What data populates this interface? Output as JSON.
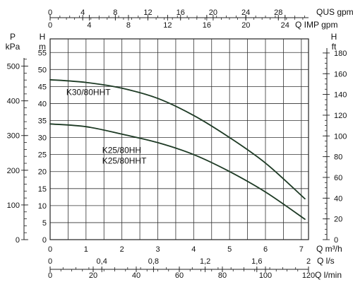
{
  "chart_data": {
    "type": "line",
    "title": "",
    "colors": {
      "curve": "#1d3a24",
      "grid": "#333333",
      "text": "#111111"
    },
    "grid": true,
    "primary_x": {
      "unit": "Q m³/h",
      "range": [
        0,
        7.2
      ],
      "ticks": [
        "0",
        "1",
        "2",
        "3",
        "4",
        "5",
        "6",
        "7"
      ]
    },
    "primary_y": {
      "label": "H",
      "unit": "m",
      "range": [
        0,
        59
      ],
      "ticks": [
        "0",
        "5",
        "10",
        "15",
        "20",
        "25",
        "30",
        "35",
        "40",
        "45",
        "50",
        "55"
      ]
    },
    "left_pressure_axis": {
      "label": "P",
      "unit": "kPa",
      "ticks": [
        "0",
        "100",
        "200",
        "300",
        "400",
        "500"
      ],
      "ticks_value": [
        0,
        100,
        200,
        300,
        400,
        500
      ]
    },
    "right_feet_axis": {
      "label": "H",
      "unit": "ft",
      "ticks": [
        "0",
        "20",
        "40",
        "60",
        "80",
        "100",
        "120",
        "140",
        "160",
        "180"
      ],
      "ticks_value": [
        0,
        20,
        40,
        60,
        80,
        100,
        120,
        140,
        160,
        180
      ]
    },
    "top_axes": [
      {
        "label": "QUS gpm",
        "ticks": [
          "0",
          "4",
          "8",
          "12",
          "16",
          "20",
          "24",
          "28"
        ],
        "ticks_value": [
          0,
          4,
          8,
          12,
          16,
          20,
          24,
          28
        ],
        "m3h_per_unit": 0.22712
      },
      {
        "label": "Q IMP gpm",
        "ticks": [
          "0",
          "4",
          "8",
          "12",
          "16",
          "20",
          "24"
        ],
        "ticks_value": [
          0,
          4,
          8,
          12,
          16,
          20,
          24
        ],
        "m3h_per_unit": 0.27277
      }
    ],
    "bottom_axes": [
      {
        "label": "Q l/s",
        "ticks": [
          "0",
          "0,4",
          "0,8",
          "1,2",
          "1,6",
          "2"
        ],
        "ticks_value": [
          0,
          0.4,
          0.8,
          1.2,
          1.6,
          2
        ],
        "m3h_per_unit": 3.6
      },
      {
        "label": "Q l/min",
        "ticks": [
          "0",
          "20",
          "40",
          "60",
          "80",
          "100",
          "120"
        ],
        "ticks_value": [
          0,
          20,
          40,
          60,
          80,
          100,
          120
        ],
        "m3h_per_unit": 0.06
      }
    ],
    "series": [
      {
        "name": "K30/80HHT",
        "x": [
          0,
          1,
          2,
          3,
          4,
          5,
          6,
          7.1
        ],
        "y": [
          47,
          46.2,
          44.5,
          41.5,
          36.5,
          30,
          22.5,
          12
        ]
      },
      {
        "name": "K25/80HH K25/80HHT",
        "x": [
          0,
          1,
          2,
          3,
          4,
          5,
          6,
          7.1
        ],
        "y": [
          34,
          33.2,
          31,
          28.5,
          25,
          20,
          14,
          6
        ]
      }
    ],
    "annotations": [
      {
        "series": 0,
        "lines": [
          "K30/80HHT"
        ],
        "at": [
          0.45,
          42.5
        ]
      },
      {
        "series": 1,
        "lines": [
          "K25/80HH",
          "K25/80HHT"
        ],
        "at": [
          1.45,
          25.5
        ]
      }
    ]
  }
}
